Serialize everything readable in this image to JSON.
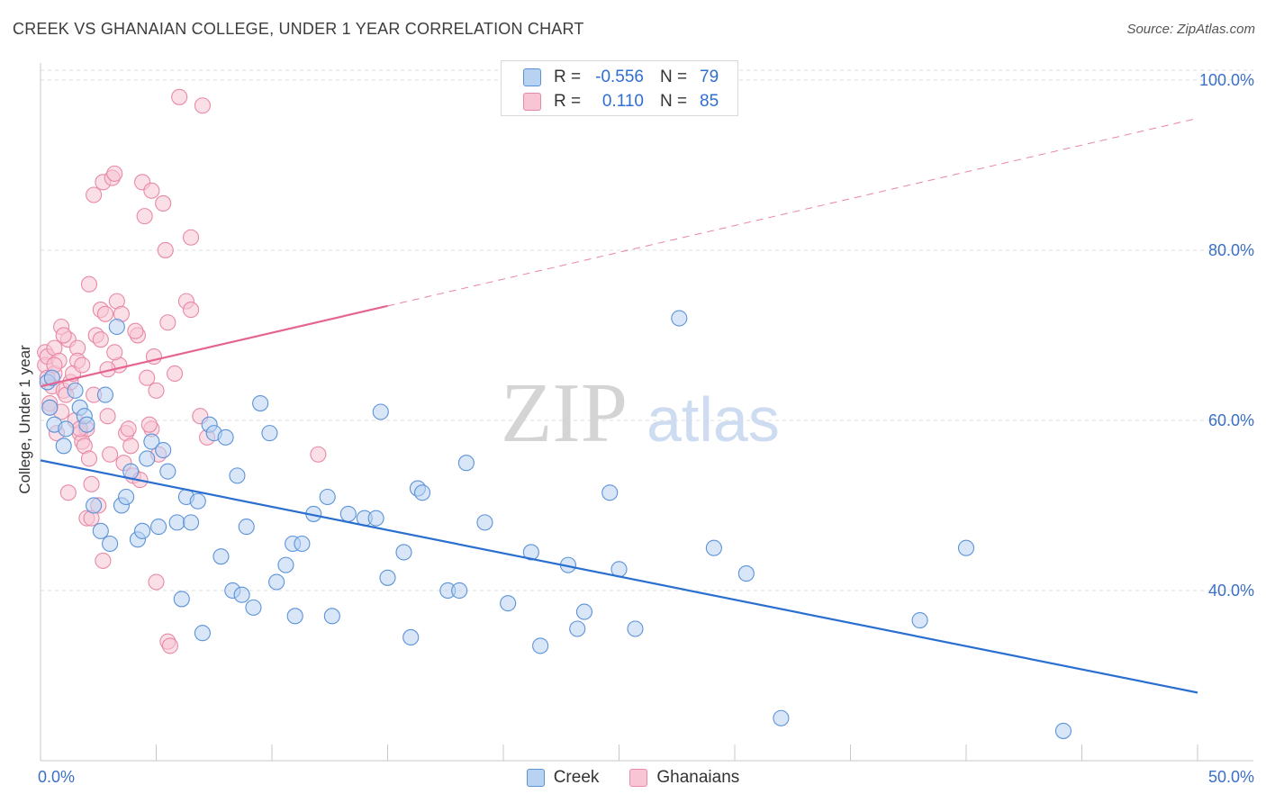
{
  "title": "CREEK VS GHANAIAN COLLEGE, UNDER 1 YEAR CORRELATION CHART",
  "source": "Source: ZipAtlas.com",
  "watermark": {
    "zip": "ZIP",
    "atlas": "atlas"
  },
  "colors": {
    "creek_fill": "#b8d2f2",
    "creek_stroke": "#5b93d8",
    "creek_line": "#2a6fd0",
    "ghana_fill": "#f8c5d4",
    "ghana_stroke": "#e889a6",
    "ghana_line": "#e46591",
    "tick_label": "#3a70c8",
    "grid": "#dedede"
  },
  "stats_box": {
    "rows": [
      {
        "r_label": "R =",
        "r_value": "-0.556",
        "n_label": "N =",
        "n_value": "79",
        "series": "Creek"
      },
      {
        "r_label": "R =",
        "r_value": "0.110",
        "n_label": "N =",
        "n_value": "85",
        "series": "Ghanaians"
      }
    ]
  },
  "chart_data": {
    "type": "scatter",
    "title": "CREEK VS GHANAIAN COLLEGE, UNDER 1 YEAR CORRELATION CHART",
    "xlabel": "",
    "ylabel": "College, Under 1 year",
    "xlim": [
      0,
      50
    ],
    "ylim": [
      20,
      102
    ],
    "x_tick_labels": [
      "0.0%",
      "50.0%"
    ],
    "y_ticks": [
      40,
      60,
      80,
      100
    ],
    "y_tick_labels": [
      "40.0%",
      "60.0%",
      "80.0%",
      "100.0%"
    ],
    "grid": true,
    "legend_position": "bottom",
    "series": [
      {
        "name": "Creek",
        "trend": {
          "x0": 0,
          "y0": 55.3,
          "x1": 50,
          "y1": 28.0,
          "dashed_from": null
        },
        "points": [
          [
            0.3,
            64.5
          ],
          [
            0.4,
            61.5
          ],
          [
            0.6,
            59.5
          ],
          [
            1.0,
            57.0
          ],
          [
            1.1,
            59.0
          ],
          [
            1.5,
            63.5
          ],
          [
            1.7,
            61.5
          ],
          [
            1.9,
            60.5
          ],
          [
            2.0,
            59.5
          ],
          [
            2.3,
            50.0
          ],
          [
            2.6,
            47.0
          ],
          [
            2.8,
            63.0
          ],
          [
            3.0,
            45.5
          ],
          [
            3.3,
            71.0
          ],
          [
            3.5,
            50.0
          ],
          [
            3.7,
            51.0
          ],
          [
            3.9,
            54.0
          ],
          [
            4.2,
            46.0
          ],
          [
            4.4,
            47.0
          ],
          [
            4.6,
            55.5
          ],
          [
            4.8,
            57.5
          ],
          [
            5.1,
            47.5
          ],
          [
            5.3,
            56.5
          ],
          [
            5.5,
            54.0
          ],
          [
            5.9,
            48.0
          ],
          [
            6.1,
            39.0
          ],
          [
            6.3,
            51.0
          ],
          [
            6.5,
            48.0
          ],
          [
            6.8,
            50.5
          ],
          [
            7.0,
            35.0
          ],
          [
            7.3,
            59.5
          ],
          [
            7.5,
            58.5
          ],
          [
            7.8,
            44.0
          ],
          [
            8.0,
            58.0
          ],
          [
            8.3,
            40.0
          ],
          [
            8.5,
            53.5
          ],
          [
            8.7,
            39.5
          ],
          [
            8.9,
            47.5
          ],
          [
            9.2,
            38.0
          ],
          [
            9.5,
            62.0
          ],
          [
            9.9,
            58.5
          ],
          [
            10.2,
            41.0
          ],
          [
            10.6,
            43.0
          ],
          [
            10.9,
            45.5
          ],
          [
            11.0,
            37.0
          ],
          [
            11.3,
            45.5
          ],
          [
            11.8,
            49.0
          ],
          [
            12.4,
            51.0
          ],
          [
            12.6,
            37.0
          ],
          [
            13.3,
            49.0
          ],
          [
            14.0,
            48.5
          ],
          [
            14.5,
            48.5
          ],
          [
            14.7,
            61.0
          ],
          [
            15.0,
            41.5
          ],
          [
            15.7,
            44.5
          ],
          [
            16.0,
            34.5
          ],
          [
            16.3,
            52.0
          ],
          [
            16.5,
            51.5
          ],
          [
            17.6,
            40.0
          ],
          [
            18.1,
            40.0
          ],
          [
            18.4,
            55.0
          ],
          [
            19.2,
            48.0
          ],
          [
            20.2,
            38.5
          ],
          [
            21.2,
            44.5
          ],
          [
            21.6,
            33.5
          ],
          [
            22.8,
            43.0
          ],
          [
            23.2,
            35.5
          ],
          [
            23.5,
            37.5
          ],
          [
            24.6,
            51.5
          ],
          [
            25.0,
            42.5
          ],
          [
            25.7,
            35.5
          ],
          [
            27.6,
            72.0
          ],
          [
            29.1,
            45.0
          ],
          [
            30.5,
            42.0
          ],
          [
            32.0,
            25.0
          ],
          [
            38.0,
            36.5
          ],
          [
            40.0,
            45.0
          ],
          [
            44.2,
            23.5
          ],
          [
            0.5,
            65.0
          ]
        ]
      },
      {
        "name": "Ghanaians",
        "trend": {
          "x0": 0,
          "y0": 64.0,
          "x1": 50,
          "y1": 95.5,
          "dashed_from": 15.0
        },
        "points": [
          [
            0.2,
            68.0
          ],
          [
            0.2,
            66.5
          ],
          [
            0.3,
            65.0
          ],
          [
            0.3,
            67.5
          ],
          [
            0.4,
            62.0
          ],
          [
            0.5,
            64.0
          ],
          [
            0.6,
            68.5
          ],
          [
            0.6,
            65.5
          ],
          [
            0.7,
            58.5
          ],
          [
            0.8,
            67.0
          ],
          [
            0.9,
            71.0
          ],
          [
            1.0,
            63.5
          ],
          [
            1.1,
            63.0
          ],
          [
            1.2,
            69.5
          ],
          [
            1.2,
            51.5
          ],
          [
            1.3,
            64.5
          ],
          [
            1.5,
            60.0
          ],
          [
            1.6,
            68.5
          ],
          [
            1.6,
            67.0
          ],
          [
            1.7,
            58.5
          ],
          [
            1.8,
            57.5
          ],
          [
            1.9,
            57.0
          ],
          [
            2.0,
            59.0
          ],
          [
            2.0,
            48.5
          ],
          [
            2.1,
            76.0
          ],
          [
            2.1,
            55.5
          ],
          [
            2.2,
            52.5
          ],
          [
            2.2,
            48.5
          ],
          [
            2.3,
            86.5
          ],
          [
            2.4,
            70.0
          ],
          [
            2.6,
            69.5
          ],
          [
            2.6,
            73.0
          ],
          [
            2.7,
            88.0
          ],
          [
            2.7,
            43.5
          ],
          [
            2.8,
            72.5
          ],
          [
            2.9,
            60.5
          ],
          [
            3.0,
            56.0
          ],
          [
            3.1,
            88.5
          ],
          [
            3.2,
            89.0
          ],
          [
            3.3,
            74.0
          ],
          [
            3.4,
            66.5
          ],
          [
            3.5,
            72.5
          ],
          [
            3.6,
            55.0
          ],
          [
            3.7,
            58.5
          ],
          [
            3.8,
            59.0
          ],
          [
            4.0,
            53.5
          ],
          [
            4.2,
            70.0
          ],
          [
            4.3,
            53.0
          ],
          [
            4.4,
            88.0
          ],
          [
            4.5,
            84.0
          ],
          [
            4.6,
            65.0
          ],
          [
            4.8,
            87.0
          ],
          [
            4.8,
            59.0
          ],
          [
            4.9,
            67.5
          ],
          [
            5.0,
            63.5
          ],
          [
            5.0,
            41.0
          ],
          [
            5.3,
            85.5
          ],
          [
            5.4,
            80.0
          ],
          [
            5.5,
            71.5
          ],
          [
            5.5,
            34.0
          ],
          [
            5.6,
            33.5
          ],
          [
            5.8,
            65.5
          ],
          [
            6.0,
            98.0
          ],
          [
            6.3,
            74.0
          ],
          [
            6.5,
            73.0
          ],
          [
            6.5,
            81.5
          ],
          [
            6.9,
            60.5
          ],
          [
            7.0,
            97.0
          ],
          [
            7.2,
            58.0
          ],
          [
            12.0,
            56.0
          ],
          [
            1.4,
            65.5
          ],
          [
            0.9,
            61.0
          ],
          [
            1.7,
            59.0
          ],
          [
            2.5,
            50.0
          ],
          [
            3.9,
            57.0
          ],
          [
            4.7,
            59.5
          ],
          [
            0.4,
            61.5
          ],
          [
            1.0,
            70.0
          ],
          [
            2.3,
            63.0
          ],
          [
            3.2,
            68.0
          ],
          [
            0.6,
            66.5
          ],
          [
            1.8,
            66.5
          ],
          [
            5.1,
            56.0
          ],
          [
            2.9,
            66.0
          ],
          [
            4.1,
            70.5
          ]
        ]
      }
    ]
  }
}
